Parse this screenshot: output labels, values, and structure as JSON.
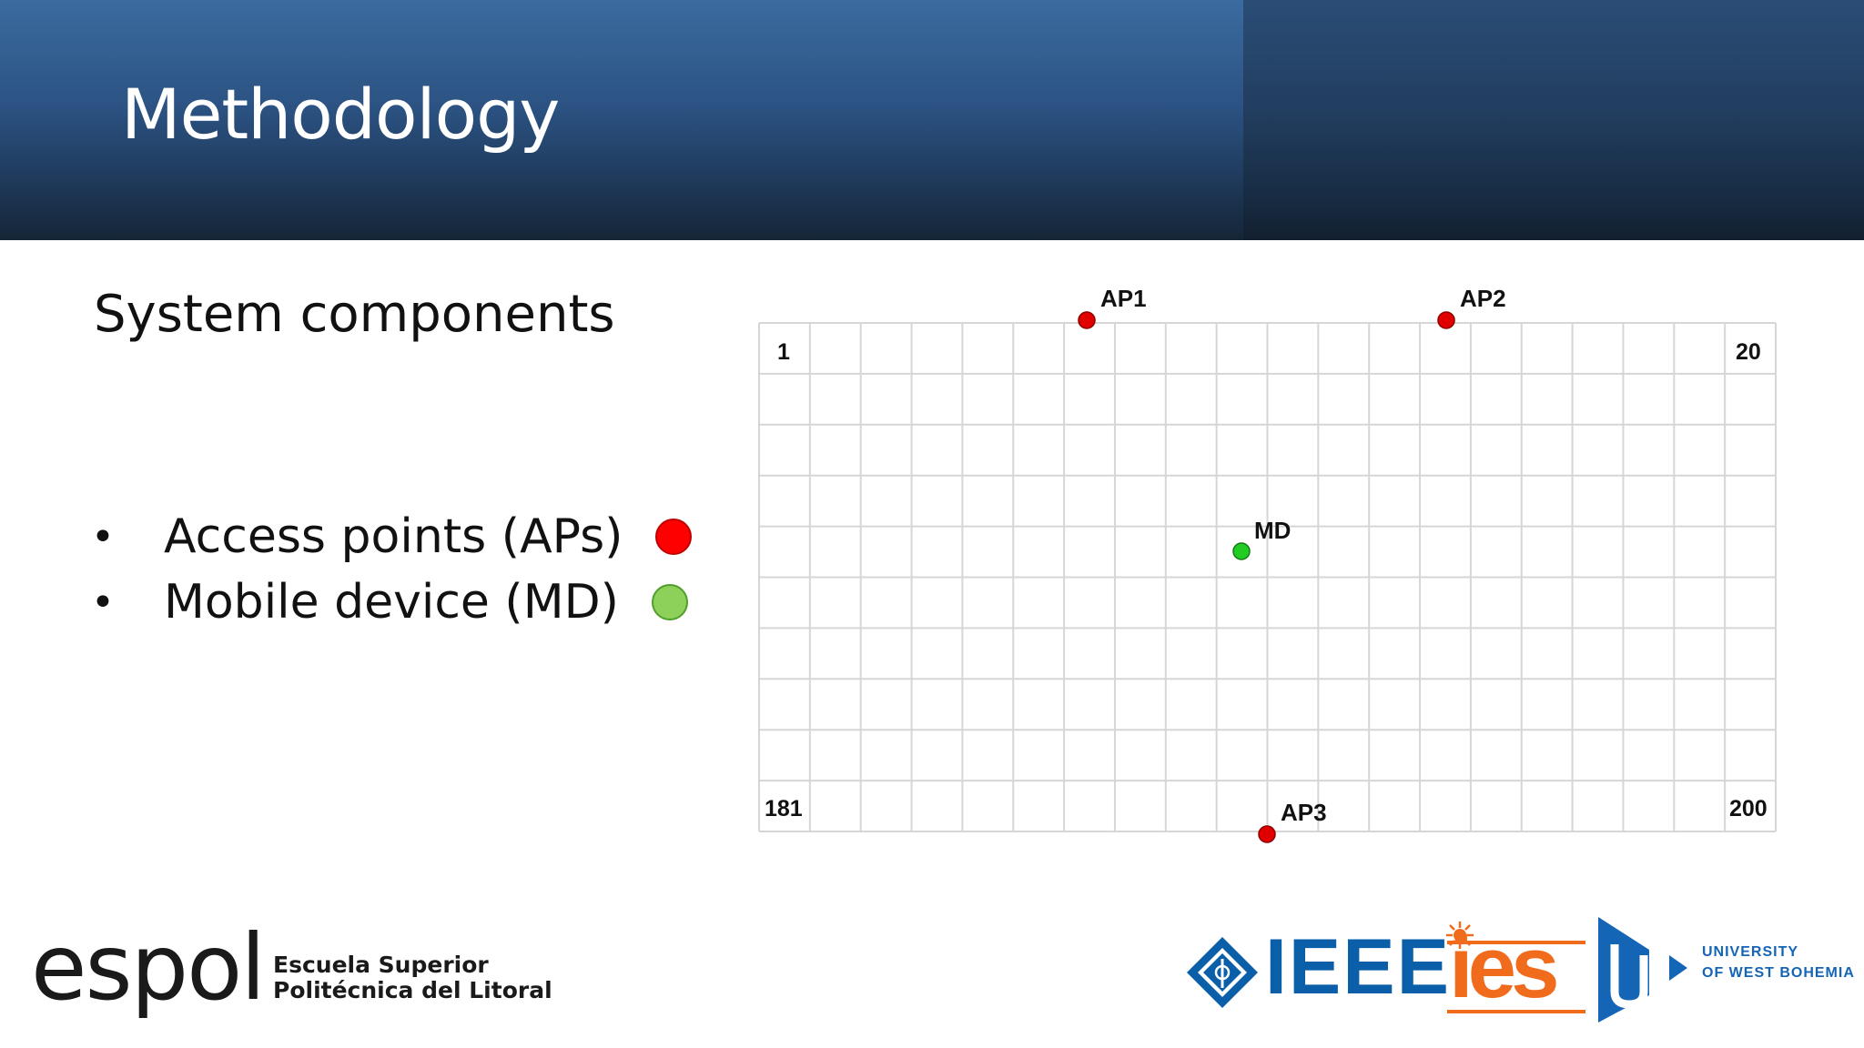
{
  "slide": {
    "title": "Methodology",
    "subtitle": "System components",
    "bullet_symbol": "•",
    "bullets": [
      {
        "text": "Access points (APs)",
        "marker_color": "#ff0000"
      },
      {
        "text": "Mobile device (MD)",
        "marker_color": "#8ed15a"
      }
    ]
  },
  "grid": {
    "columns": 20,
    "rows": 10,
    "corner_labels": {
      "top_left": "1",
      "top_right": "20",
      "bottom_left": "181",
      "bottom_right": "200"
    },
    "nodes": [
      {
        "label": "AP1",
        "type": "access-point",
        "color": "#e00000"
      },
      {
        "label": "AP2",
        "type": "access-point",
        "color": "#e00000"
      },
      {
        "label": "MD",
        "type": "mobile-device",
        "color": "#22cc22"
      },
      {
        "label": "AP3",
        "type": "access-point",
        "color": "#e00000"
      }
    ]
  },
  "logos": {
    "espol": {
      "wordmark": "espol",
      "line1": "Escuela Superior",
      "line2": "Politécnica del Litoral"
    },
    "ieee": {
      "wordmark": "IEEE"
    },
    "ies": {
      "wordmark": "ies"
    },
    "uwb": {
      "line1": "UNIVERSITY",
      "line2": "OF WEST BOHEMIA"
    }
  }
}
